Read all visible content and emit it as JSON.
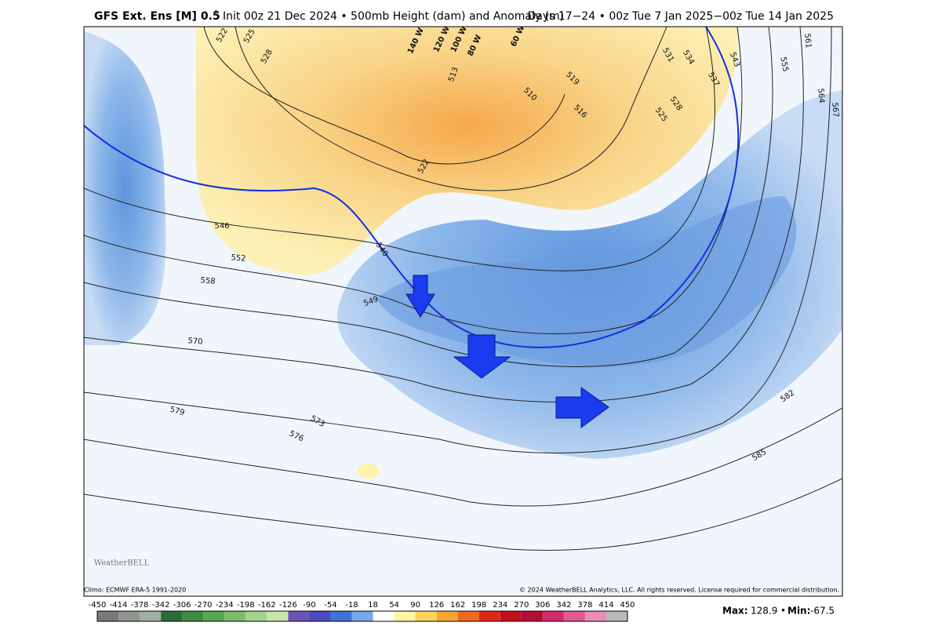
{
  "header": {
    "model": "GFS Ext.  Ens [M] 0.5",
    "degree": "°",
    "init": "Init 00z 21 Dec 2024 • 500mb Height (dam) and Anomaly (m)",
    "valid": "Days 17−24 • 00z Tue 7 Jan 2025−00z Tue 14 Jan 2025"
  },
  "map": {
    "contour_labels": [
      "522",
      "525",
      "528",
      "531",
      "534",
      "537",
      "543",
      "555",
      "561",
      "564",
      "567",
      "519",
      "510",
      "516",
      "513",
      "525",
      "528",
      "546",
      "552",
      "558",
      "570",
      "579",
      "576",
      "573",
      "540",
      "549",
      "522",
      "582",
      "585"
    ],
    "longitude_labels": [
      "140 W",
      "120 W",
      "100 W",
      "80 W",
      "60 W"
    ],
    "logo": "WeatherBELL"
  },
  "footer": {
    "climo": "Climo: ECMWF ERA-5 1991-2020",
    "copyright": "© 2024 WeatherBELL Analytics, LLC. All rights reserved. License required for commercial distribution."
  },
  "colorbar": {
    "ticks": [
      "-450",
      "-414",
      "-378",
      "-342",
      "-306",
      "-270",
      "-234",
      "-198",
      "-162",
      "-126",
      "-90",
      "-54",
      "-18",
      "18",
      "54",
      "90",
      "126",
      "162",
      "198",
      "234",
      "270",
      "306",
      "342",
      "378",
      "414",
      "450"
    ],
    "colors": [
      "#7a7a7a",
      "#8f968f",
      "#a3aea3",
      "#2e6b3a",
      "#3f8a45",
      "#58a552",
      "#7dbd6a",
      "#a4d38b",
      "#c8e5ae",
      "#6a55b5",
      "#4a4bbf",
      "#3f72d6",
      "#77a8ea",
      "#ffffff",
      "#fff3a6",
      "#fbd35c",
      "#f7a632",
      "#ef6a1f",
      "#df2a1a",
      "#c3101a",
      "#b40d38",
      "#d22b68",
      "#e35a8d",
      "#ea8db4",
      "#b9b9b9"
    ]
  },
  "stats": {
    "max_label": "Max:",
    "max_value": "128.9",
    "separator": "•",
    "min_label": "Min:",
    "min_value": "-67.5"
  }
}
